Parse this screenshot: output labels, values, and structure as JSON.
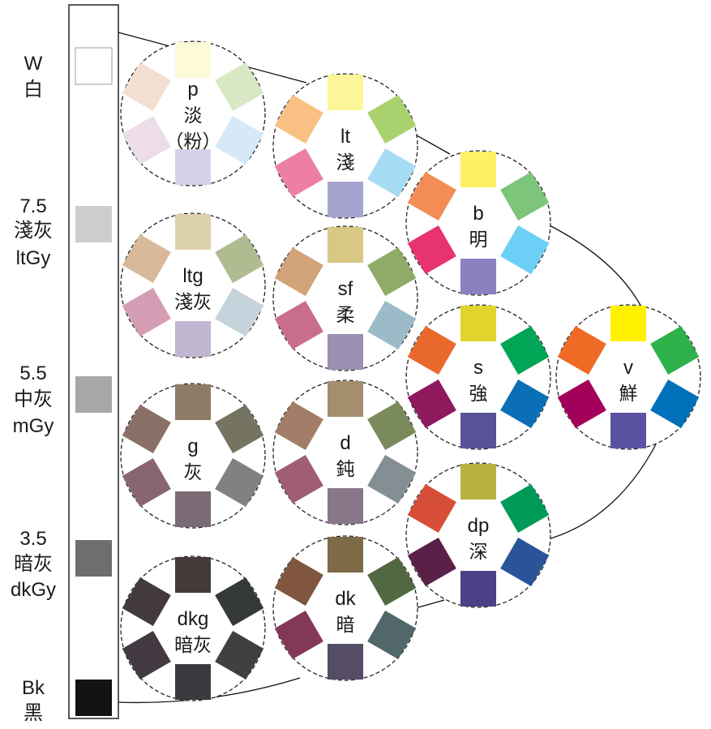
{
  "gray_scale": [
    {
      "lines": [
        "W",
        "白"
      ],
      "color": "#ffffff"
    },
    {
      "lines": [
        "7.5",
        "淺灰",
        "ltGy"
      ],
      "color": "#cdcdcd"
    },
    {
      "lines": [
        "5.5",
        "中灰",
        "mGy"
      ],
      "color": "#a7a7a7"
    },
    {
      "lines": [
        "3.5",
        "暗灰",
        "dkGy"
      ],
      "color": "#6e6e70"
    },
    {
      "lines": [
        "Bk",
        "黑"
      ],
      "color": "#131315"
    }
  ],
  "tones": [
    {
      "key": "p",
      "code": "p",
      "name": "淡",
      "name2": "（粉）",
      "colors": [
        "#fdfad6",
        "#d8e8c3",
        "#d5e9f7",
        "#d5d3e9",
        "#ecdde8",
        "#f3dfd1"
      ]
    },
    {
      "key": "ltg",
      "code": "ltg",
      "name": "淺灰",
      "colors": [
        "#ddd2ad",
        "#b0bb90",
        "#c5d3dc",
        "#c1b6cf",
        "#d59db3",
        "#d8b99c"
      ]
    },
    {
      "key": "g",
      "code": "g",
      "name": "灰",
      "colors": [
        "#8c7b67",
        "#757460",
        "#838080",
        "#7a6b75",
        "#896573",
        "#8a7066"
      ]
    },
    {
      "key": "dkg",
      "code": "dkg",
      "name": "暗灰",
      "colors": [
        "#423b38",
        "#353a38",
        "#3f4041",
        "#3a3b3e",
        "#423a40",
        "#433a3c"
      ]
    },
    {
      "key": "lt",
      "code": "lt",
      "name": "淺",
      "colors": [
        "#fdf699",
        "#a9d26f",
        "#a6dcf3",
        "#a5a4d1",
        "#ed7fa4",
        "#f8c083"
      ]
    },
    {
      "key": "sf",
      "code": "sf",
      "name": "柔",
      "colors": [
        "#d9c785",
        "#8fab67",
        "#9cbbc9",
        "#9b90b1",
        "#c86e8c",
        "#d2a377"
      ]
    },
    {
      "key": "d",
      "code": "d",
      "name": "鈍",
      "colors": [
        "#a48e6e",
        "#7a8a5c",
        "#838f92",
        "#877789",
        "#a05e73",
        "#a27d67"
      ]
    },
    {
      "key": "dk",
      "code": "dk",
      "name": "暗",
      "colors": [
        "#7e6a46",
        "#526841",
        "#51676a",
        "#544d63",
        "#833857",
        "#80563f"
      ]
    },
    {
      "key": "b",
      "code": "b",
      "name": "明",
      "colors": [
        "#fef263",
        "#7cc57a",
        "#6ccff6",
        "#8a82c0",
        "#e7336e",
        "#f38c55"
      ]
    },
    {
      "key": "s",
      "code": "s",
      "name": "強",
      "colors": [
        "#e0d42d",
        "#00a555",
        "#0a6fb6",
        "#57529a",
        "#8f195d",
        "#e9692d"
      ]
    },
    {
      "key": "dp",
      "code": "dp",
      "name": "深",
      "colors": [
        "#b7b23f",
        "#009a58",
        "#2b5498",
        "#4a4186",
        "#5b2048",
        "#d64e37"
      ]
    },
    {
      "key": "v",
      "code": "v",
      "name": "鮮",
      "colors": [
        "#fff100",
        "#2eb14b",
        "#0070ba",
        "#5b53a2",
        "#a3005b",
        "#ee6a25"
      ]
    }
  ]
}
